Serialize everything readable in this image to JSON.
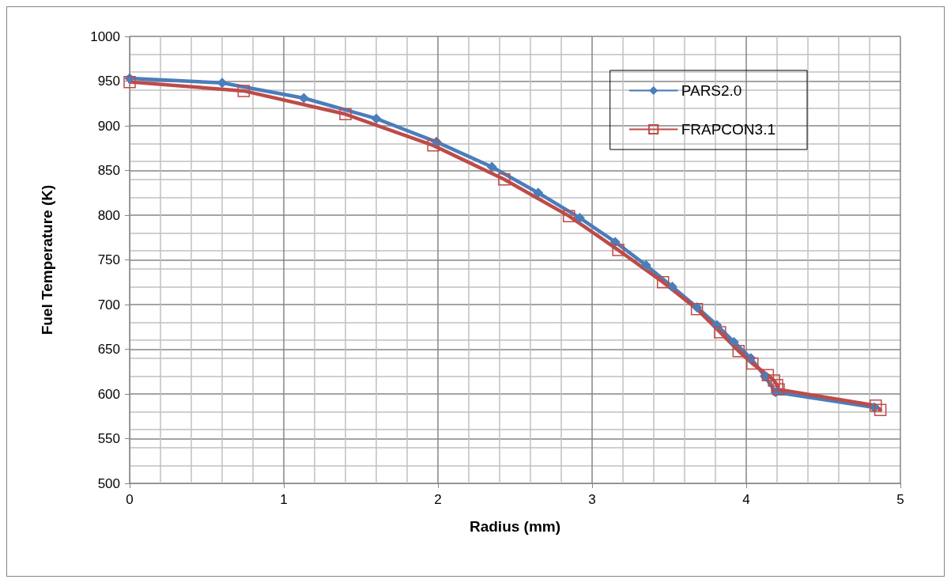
{
  "chart_data": {
    "type": "line",
    "xlabel": "Radius (mm)",
    "ylabel": "Fuel Temperature (K)",
    "xlim": [
      0,
      5
    ],
    "xticks": [
      0,
      1,
      2,
      3,
      4,
      5
    ],
    "ylim": [
      500,
      1000
    ],
    "yticks": [
      500,
      550,
      600,
      650,
      700,
      750,
      800,
      850,
      900,
      950,
      1000
    ],
    "grid": true,
    "legend": "top right",
    "line_style": "solid",
    "series": [
      {
        "name": "PARS2.0",
        "color": "#4a7ebb",
        "marker": "diamond",
        "x": [
          0,
          0.6,
          1.13,
          1.6,
          1.99,
          2.35,
          2.65,
          2.92,
          3.15,
          3.35,
          3.52,
          3.68,
          3.81,
          3.92,
          4.03,
          4.12,
          4.19,
          4.83
        ],
        "values": [
          953,
          948,
          931,
          908,
          882,
          854,
          825,
          797,
          770,
          744,
          720,
          697,
          677,
          658,
          640,
          620,
          602,
          585
        ]
      },
      {
        "name": "FRAPCON3.1",
        "color": "#be4b48",
        "marker": "square",
        "x": [
          0,
          0.74,
          1.4,
          1.97,
          2.43,
          2.85,
          3.17,
          3.46,
          3.68,
          3.83,
          3.95,
          4.04,
          4.14,
          4.18,
          4.2,
          4.21,
          4.84,
          4.87
        ],
        "values": [
          949,
          939,
          913,
          878,
          840,
          799,
          761,
          725,
          695,
          669,
          648,
          634,
          621,
          615,
          610,
          605,
          587,
          582
        ]
      }
    ]
  }
}
